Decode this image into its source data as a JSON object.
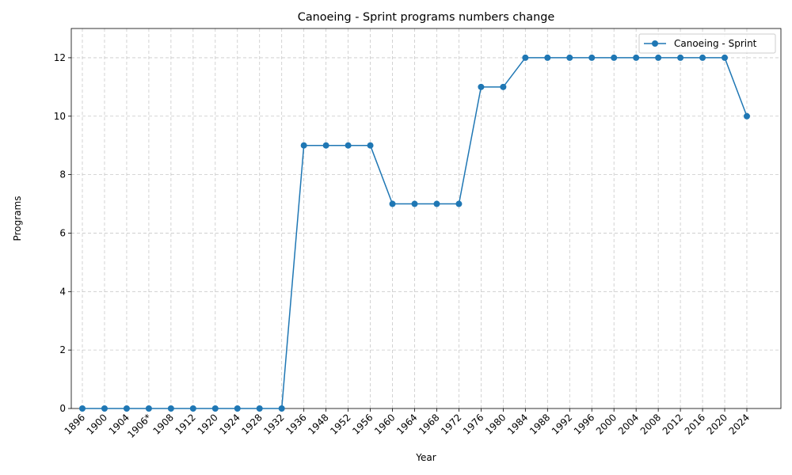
{
  "chart_data": {
    "type": "line",
    "title": "Canoeing - Sprint programs numbers change",
    "xlabel": "Year",
    "ylabel": "Programs",
    "categories": [
      "1896",
      "1900",
      "1904",
      "1906*",
      "1908",
      "1912",
      "1920",
      "1924",
      "1928",
      "1932",
      "1936",
      "1948",
      "1952",
      "1956",
      "1960",
      "1964",
      "1968",
      "1972",
      "1976",
      "1980",
      "1984",
      "1988",
      "1992",
      "1996",
      "2000",
      "2004",
      "2008",
      "2012",
      "2016",
      "2020",
      "2024"
    ],
    "series": [
      {
        "name": "Canoeing - Sprint",
        "values": [
          0,
          0,
          0,
          0,
          0,
          0,
          0,
          0,
          0,
          0,
          9,
          9,
          9,
          9,
          7,
          7,
          7,
          7,
          11,
          11,
          12,
          12,
          12,
          12,
          12,
          12,
          12,
          12,
          12,
          12,
          10
        ],
        "color": "#1f77b4",
        "marker": "circle"
      }
    ],
    "ylim": [
      0,
      13
    ],
    "yticks": [
      0,
      2,
      4,
      6,
      8,
      10,
      12
    ],
    "grid": true,
    "legend_position": "top-right"
  }
}
